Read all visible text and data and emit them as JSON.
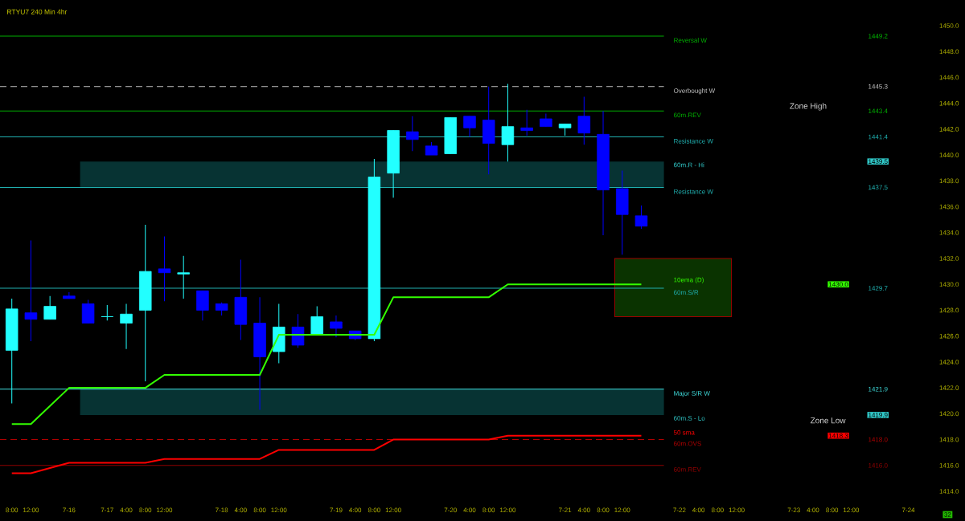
{
  "chart_data": {
    "type": "candlestick",
    "title": "RTYU7 240 Min  4hr",
    "categories": [
      "8:00",
      "12:00",
      null,
      "7-16",
      null,
      "7-17",
      "4:00",
      "8:00",
      "12:00",
      null,
      null,
      "7-18",
      "4:00",
      "8:00",
      "12:00",
      null,
      null,
      "7-19",
      "4:00",
      "8:00",
      "12:00",
      null,
      null,
      "7-20",
      "4:00",
      "8:00",
      "12:00",
      null,
      null,
      "7-21",
      "4:00",
      "8:00",
      "12:00",
      null,
      null,
      "7-22",
      "4:00",
      "8:00",
      "12:00",
      null,
      null,
      "7-23",
      "4:00",
      "8:00",
      "12:00",
      null,
      null,
      "7-24"
    ],
    "ohlc": [
      [
        1424.9,
        1428.9,
        1420.8,
        1428.1
      ],
      [
        1427.8,
        1433.4,
        1425.6,
        1427.3
      ],
      [
        1427.3,
        1429.1,
        1427.3,
        1428.3
      ],
      [
        1429.1,
        1429.4,
        1428.9,
        1428.9
      ],
      [
        1428.5,
        1428.8,
        1427.0,
        1427.0
      ],
      [
        1427.5,
        1428.4,
        1427.2,
        1427.5
      ],
      [
        1427.0,
        1428.5,
        1425.0,
        1427.7
      ],
      [
        1428.0,
        1434.6,
        1422.5,
        1431.0
      ],
      [
        1431.2,
        1433.7,
        1428.7,
        1430.9
      ],
      [
        1430.8,
        1432.2,
        1428.9,
        1430.9
      ],
      [
        1429.5,
        1429.5,
        1427.2,
        1428.0
      ],
      [
        1428.5,
        1428.6,
        1427.6,
        1428.0
      ],
      [
        1429.0,
        1431.9,
        1425.7,
        1426.9
      ],
      [
        1427.0,
        1429.0,
        1420.3,
        1424.4
      ],
      [
        1424.8,
        1428.5,
        1423.9,
        1426.7
      ],
      [
        1426.7,
        1427.7,
        1425.1,
        1425.3
      ],
      [
        1426.1,
        1428.3,
        1426.1,
        1427.5
      ],
      [
        1427.1,
        1427.6,
        1425.9,
        1426.6
      ],
      [
        1426.4,
        1426.4,
        1425.7,
        1425.8
      ],
      [
        1425.8,
        1439.7,
        1425.6,
        1438.3
      ],
      [
        1438.6,
        1441.9,
        1436.7,
        1441.9
      ],
      [
        1441.8,
        1443.0,
        1440.3,
        1441.2
      ],
      [
        1440.7,
        1441.0,
        1440.0,
        1440.0
      ],
      [
        1440.1,
        1442.9,
        1440.1,
        1442.9
      ],
      [
        1443.0,
        1443.0,
        1441.4,
        1442.1
      ],
      [
        1442.7,
        1445.3,
        1438.5,
        1440.9
      ],
      [
        1440.8,
        1445.5,
        1439.5,
        1442.2
      ],
      [
        1442.1,
        1443.5,
        1441.5,
        1441.9
      ],
      [
        1442.8,
        1443.2,
        1442.2,
        1442.2
      ],
      [
        1442.1,
        1442.4,
        1441.5,
        1442.4
      ],
      [
        1443.0,
        1444.5,
        1440.8,
        1441.7
      ],
      [
        1441.6,
        1443.4,
        1433.8,
        1437.3
      ],
      [
        1437.4,
        1438.8,
        1432.3,
        1435.4
      ],
      [
        1435.3,
        1436.1,
        1434.3,
        1434.5
      ],
      null,
      null,
      null,
      null,
      null,
      null,
      null,
      null,
      null,
      null,
      null,
      null,
      null,
      null
    ],
    "colors": [
      "#22ffff",
      "#0000ff",
      "#22ffff",
      "#0000ff",
      "#0000ff",
      "#22ffff",
      "#22ffff",
      "#22ffff",
      "#0000ff",
      "#22ffff",
      "#0000ff",
      "#0000ff",
      "#0000ff",
      "#0000ff",
      "#22ffff",
      "#0000ff",
      "#22ffff",
      "#0000ff",
      "#0000ff",
      "#22ffff",
      "#22ffff",
      "#0000ff",
      "#0000ff",
      "#22ffff",
      "#0000ff",
      "#0000ff",
      "#22ffff",
      "#0000ff",
      "#0000ff",
      "#22ffff",
      "#0000ff",
      "#0000ff",
      "#0000ff",
      "#0000ff",
      null,
      null,
      null,
      null,
      null,
      null,
      null,
      null,
      null,
      null,
      null,
      null,
      null,
      null
    ],
    "series": [
      {
        "name": "10ema (D)",
        "type": "line",
        "color": "#33ff00",
        "values": [
          1419.2,
          1419.2,
          1420.6,
          1422.0,
          1422.0,
          1422.0,
          1422.0,
          1422.0,
          1423.0,
          1423.0,
          1423.0,
          1423.0,
          1423.0,
          1423.0,
          1426.1,
          1426.1,
          1426.1,
          1426.1,
          1426.1,
          1426.1,
          1429.0,
          1429.0,
          1429.0,
          1429.0,
          1429.0,
          1429.0,
          1430.0,
          1430.0,
          1430.0,
          1430.0,
          1430.0,
          1430.0,
          1430.0,
          1430.0,
          null,
          null,
          null,
          null,
          null,
          null,
          null,
          null,
          null,
          null,
          null,
          null,
          null,
          null
        ]
      },
      {
        "name": "50 sma",
        "type": "line",
        "color": "#ff0000",
        "values": [
          1415.4,
          1415.4,
          1415.8,
          1416.2,
          1416.2,
          1416.2,
          1416.2,
          1416.2,
          1416.5,
          1416.5,
          1416.5,
          1416.5,
          1416.5,
          1416.5,
          1417.2,
          1417.2,
          1417.2,
          1417.2,
          1417.2,
          1417.2,
          1418.0,
          1418.0,
          1418.0,
          1418.0,
          1418.0,
          1418.0,
          1418.3,
          1418.3,
          1418.3,
          1418.3,
          1418.3,
          1418.3,
          1418.3,
          1418.3,
          null,
          null,
          null,
          null,
          null,
          null,
          null,
          null,
          null,
          null,
          null,
          null,
          null,
          null
        ]
      }
    ],
    "ylim": [
      1414.0,
      1450.0
    ],
    "yticks": [
      {
        "value": 1414,
        "label": "1414.0"
      },
      {
        "value": 1416,
        "label": "1416.0"
      },
      {
        "value": 1418,
        "label": "1418.0"
      },
      {
        "value": 1420,
        "label": "1420.0"
      },
      {
        "value": 1422,
        "label": "1422.0"
      },
      {
        "value": 1424,
        "label": "1424.0"
      },
      {
        "value": 1426,
        "label": "1426.0"
      },
      {
        "value": 1428,
        "label": "1428.0"
      },
      {
        "value": 1430,
        "label": "1430.0"
      },
      {
        "value": 1432,
        "label": "1432.0"
      },
      {
        "value": 1434,
        "label": "1434.0"
      },
      {
        "value": 1436,
        "label": "1436.0"
      },
      {
        "value": 1438,
        "label": "1438.0"
      },
      {
        "value": 1440,
        "label": "1440.0"
      },
      {
        "value": 1442,
        "label": "1442.0"
      },
      {
        "value": 1444,
        "label": "1444.0"
      },
      {
        "value": 1446,
        "label": "1446.0"
      },
      {
        "value": 1448,
        "label": "1448.0"
      },
      {
        "value": 1450,
        "label": "1450.0"
      }
    ],
    "ref_lines": [
      {
        "axis": "y",
        "value": 1449.2,
        "label": "Reversal W",
        "color": "#00b000"
      },
      {
        "axis": "y",
        "value": 1445.3,
        "label": "Overbought W",
        "color": "#c8c8c8",
        "line_style": "dashed"
      },
      {
        "axis": "y",
        "value": 1443.4,
        "label": "60m.REV",
        "color": "#00b000"
      },
      {
        "axis": "y",
        "value": 1441.4,
        "label": "Resistance W",
        "color": "#20b0b0"
      },
      {
        "axis": "y",
        "value": 1437.5,
        "label": "Resistance W",
        "color": "#20b0b0"
      },
      {
        "axis": "y",
        "value": 1429.7,
        "label": "60m.S/R",
        "color": "#20b0b0"
      },
      {
        "axis": "y",
        "value": 1421.9,
        "label": "Major S/R W",
        "color": "#40e0e0"
      },
      {
        "axis": "y",
        "value": 1418.0,
        "label": "60m.OVS",
        "color": "#b00000",
        "line_style": "dashed"
      },
      {
        "axis": "y",
        "value": 1416.0,
        "label": "60m.REV",
        "color": "#900000"
      }
    ],
    "bands": [
      {
        "axis": "y",
        "from": 1439.5,
        "to": 1437.5,
        "label": "60m.R - Hi",
        "color": "#073333"
      },
      {
        "axis": "y",
        "from": 1419.9,
        "to": 1421.9,
        "label": "60m.S - Lo",
        "color": "#073333"
      },
      {
        "axis": "y",
        "from": 1432.0,
        "to": 1427.5,
        "color": "#0a3300"
      }
    ],
    "annotations": [
      "Zone High",
      "Zone Low",
      "32",
      "1449.2",
      "1445.3",
      "1443.4",
      "1441.4",
      "1439.5",
      "1437.5",
      "1430.0",
      "1429.7",
      "1421.9",
      "1419.9",
      "1418.3",
      "1418.0",
      "1416.0"
    ]
  }
}
